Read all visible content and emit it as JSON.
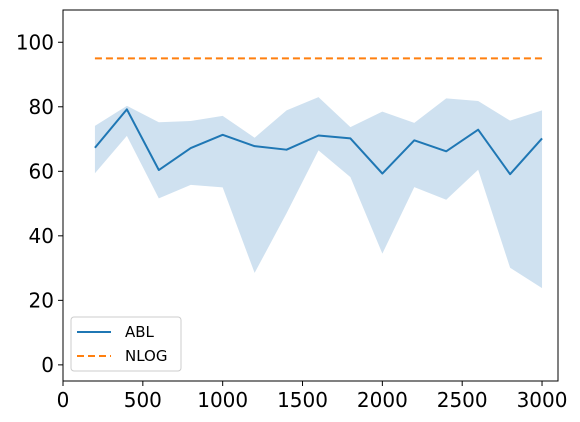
{
  "chart_data": {
    "type": "line",
    "title": "",
    "xlabel": "",
    "ylabel": "",
    "xlim": [
      0,
      3100
    ],
    "ylim": [
      -5,
      110
    ],
    "x": [
      200,
      400,
      600,
      800,
      1000,
      1200,
      1400,
      1600,
      1800,
      2000,
      2200,
      2400,
      2600,
      2800,
      3000
    ],
    "xticks": [
      0,
      500,
      1000,
      1500,
      2000,
      2500,
      3000
    ],
    "yticks": [
      0,
      20,
      40,
      60,
      80,
      100
    ],
    "grid": false,
    "legend_position": "lower-left",
    "series": [
      {
        "name": "ABL",
        "color": "#1f77b4",
        "style": "solid",
        "values": [
          67.3,
          79.2,
          60.4,
          67.2,
          71.3,
          67.8,
          66.7,
          71.1,
          70.2,
          59.3,
          69.6,
          66.2,
          72.9,
          59.1,
          70.2
        ],
        "band_lower": [
          59.4,
          71.0,
          51.6,
          55.8,
          55.0,
          28.5,
          47.0,
          66.5,
          58.2,
          34.5,
          55.1,
          51.2,
          60.5,
          30.1,
          23.8
        ],
        "band_upper": [
          74.1,
          80.3,
          75.2,
          75.6,
          77.2,
          70.4,
          78.9,
          83.0,
          73.7,
          78.5,
          75.0,
          82.6,
          81.8,
          75.7,
          78.9
        ],
        "band_color": "#cfe1f0"
      },
      {
        "name": "NLOG",
        "color": "#ff7f0e",
        "style": "dashed",
        "values": [
          95.0,
          95.0,
          95.0,
          95.0,
          95.0,
          95.0,
          95.0,
          95.0,
          95.0,
          95.0,
          95.0,
          95.0,
          95.0,
          95.0,
          95.0
        ]
      }
    ]
  }
}
